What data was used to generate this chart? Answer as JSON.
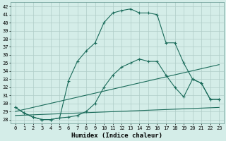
{
  "title": "",
  "xlabel": "Humidex (Indice chaleur)",
  "bg_color": "#d4ede8",
  "grid_color": "#b8d8d4",
  "line_color": "#1a6b5a",
  "xlim": [
    -0.5,
    23.5
  ],
  "ylim": [
    27.5,
    42.5
  ],
  "xticks": [
    0,
    1,
    2,
    3,
    4,
    5,
    6,
    7,
    8,
    9,
    10,
    11,
    12,
    13,
    14,
    15,
    16,
    17,
    18,
    19,
    20,
    21,
    22,
    23
  ],
  "yticks": [
    28,
    29,
    30,
    31,
    32,
    33,
    34,
    35,
    36,
    37,
    38,
    39,
    40,
    41,
    42
  ],
  "curve1_x": [
    0,
    1,
    2,
    3,
    4,
    5,
    6,
    7,
    8,
    9,
    10,
    11,
    12,
    13,
    14,
    15,
    16,
    17,
    18,
    19,
    20,
    21,
    22,
    23
  ],
  "curve1_y": [
    29.5,
    28.8,
    28.3,
    28.0,
    28.0,
    28.2,
    32.8,
    35.2,
    36.5,
    37.5,
    40.0,
    41.2,
    41.5,
    41.7,
    41.2,
    41.2,
    41.0,
    37.5,
    37.5,
    35.0,
    33.0,
    32.5,
    30.5,
    30.5
  ],
  "curve2_x": [
    0,
    1,
    2,
    3,
    4,
    5,
    6,
    7,
    8,
    9,
    10,
    11,
    12,
    13,
    14,
    15,
    16,
    17,
    18,
    19,
    20,
    21,
    22,
    23
  ],
  "curve2_y": [
    29.5,
    28.8,
    28.3,
    28.0,
    28.0,
    28.2,
    28.3,
    28.5,
    29.0,
    30.0,
    32.0,
    33.5,
    34.5,
    35.0,
    35.5,
    35.2,
    35.2,
    33.5,
    32.0,
    30.8,
    33.0,
    32.5,
    30.5,
    30.5
  ],
  "line1_x": [
    0,
    23
  ],
  "line1_y": [
    29.0,
    34.8
  ],
  "line2_x": [
    0,
    23
  ],
  "line2_y": [
    28.5,
    29.5
  ]
}
